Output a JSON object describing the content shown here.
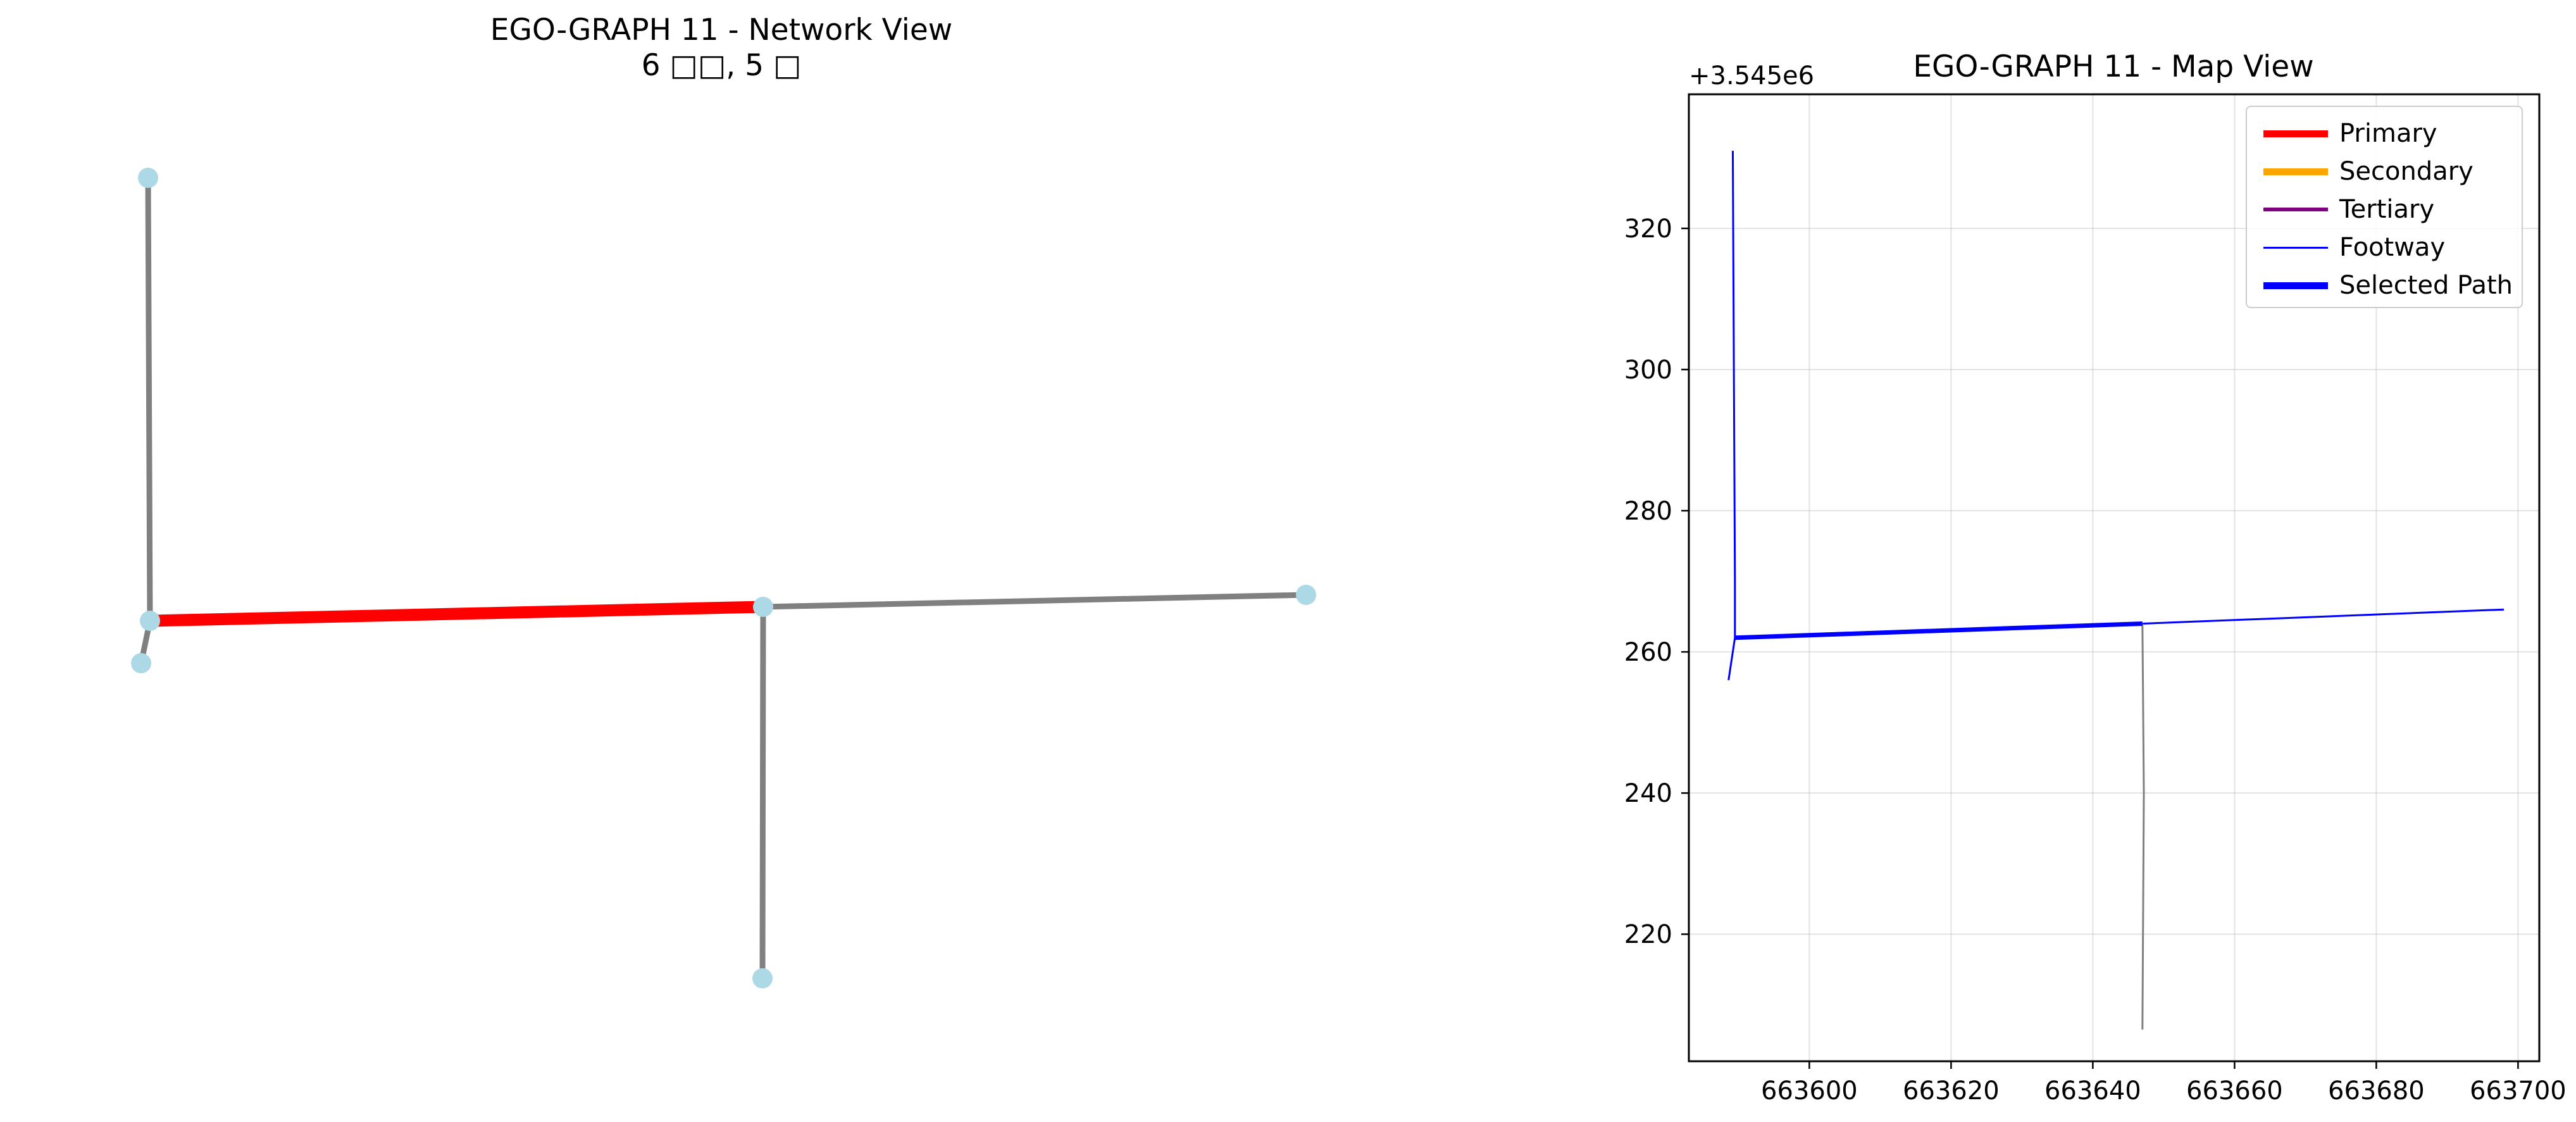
{
  "network_view": {
    "title_line1": "EGO-GRAPH 11 - Network View",
    "title_line2": "6 □□, 5 □",
    "node_color": "#add8e6",
    "edge_color": "#808080",
    "highlight_color": "#ff0000"
  },
  "map_view": {
    "title": "EGO-GRAPH 11 - Map View",
    "y_offset_label": "+3.545e6"
  },
  "chart_data": {
    "type": "line",
    "title": "EGO-GRAPH 11 - Map View",
    "xlim": [
      663583,
      663703
    ],
    "ylim": [
      3545202,
      3545339
    ],
    "x_ticks": [
      663600,
      663620,
      663640,
      663660,
      663680,
      663700
    ],
    "y_ticks": [
      220,
      240,
      260,
      280,
      300,
      320
    ],
    "y_offset": 3545000,
    "grid": true,
    "legend_placement": "top-right",
    "legend": [
      {
        "name": "Primary",
        "color": "#ff0000",
        "style": "thick"
      },
      {
        "name": "Secondary",
        "color": "#ffa500",
        "style": "thick"
      },
      {
        "name": "Tertiary",
        "color": "#800080",
        "style": "medium"
      },
      {
        "name": "Footway",
        "color": "#0000ff",
        "style": "thin"
      },
      {
        "name": "Selected Path",
        "color": "#0000ff",
        "style": "thick"
      }
    ],
    "series": [
      {
        "name": "Footway",
        "color": "#0000ff",
        "x": [
          663589.2,
          663589.5,
          663589.5
        ],
        "y": [
          3545331,
          3545270,
          3545262
        ]
      },
      {
        "name": "Footway",
        "color": "#0000ff",
        "x": [
          663589.5,
          663588.6
        ],
        "y": [
          3545262,
          3545256
        ]
      },
      {
        "name": "Footway",
        "color": "#0000ff",
        "x": [
          663647,
          663698
        ],
        "y": [
          3545264,
          3545266
        ]
      },
      {
        "color": "#808080",
        "x": [
          663647,
          663647.2,
          663647.0
        ],
        "y": [
          3545264,
          3545240,
          3545206.5
        ]
      },
      {
        "name": "Selected Path",
        "color": "#0000ff",
        "x": [
          663589.5,
          663647
        ],
        "y": [
          3545262,
          3545264
        ]
      }
    ]
  }
}
